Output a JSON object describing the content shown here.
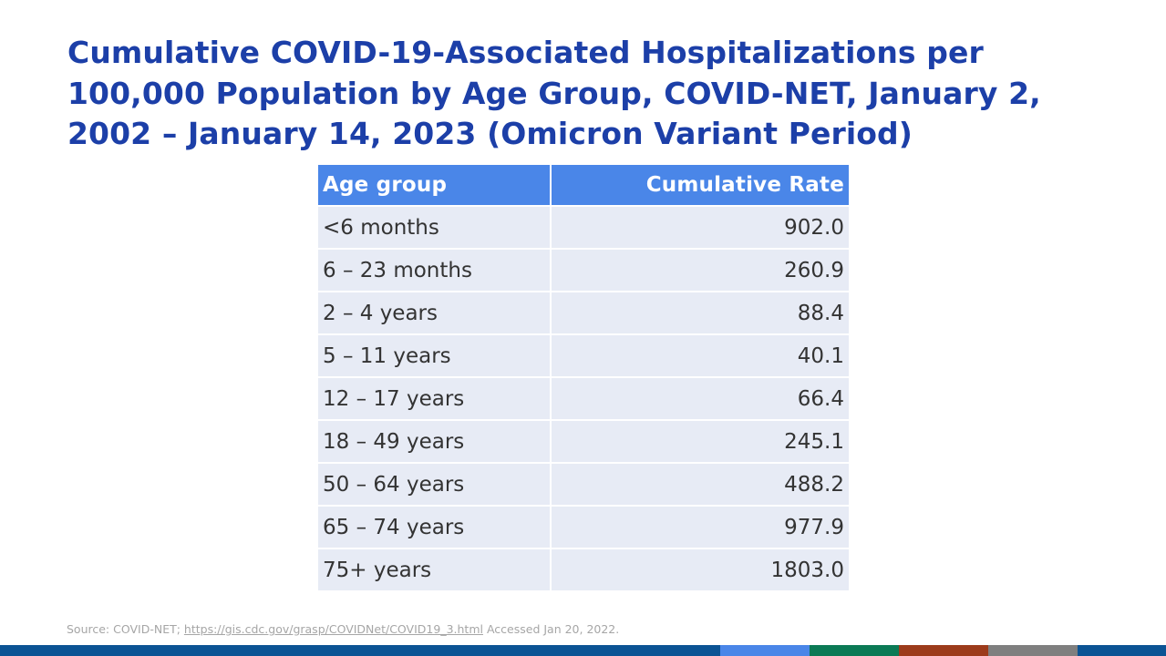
{
  "title": "Cumulative COVID-19-Associated Hospitalizations per 100,000 Population by Age Group, COVID-NET, January 2, 2002 – January 14, 2023 (Omicron Variant Period)",
  "table": {
    "headers": [
      "Age group",
      "Cumulative Rate"
    ],
    "rows": [
      [
        "<6 months",
        "902.0"
      ],
      [
        "6 – 23 months",
        "260.9"
      ],
      [
        "2 – 4 years",
        "88.4"
      ],
      [
        "5 – 11 years",
        "40.1"
      ],
      [
        "12 – 17 years",
        "66.4"
      ],
      [
        "18 – 49 years",
        "245.1"
      ],
      [
        "50 – 64 years",
        "488.2"
      ],
      [
        "65 – 74 years",
        "977.9"
      ],
      [
        "75+ years",
        "1803.0"
      ]
    ]
  },
  "source": {
    "prefix": "Source: COVID-NET; ",
    "link_text": "https://gis.cdc.gov/grasp/COVIDNet/COVID19_3.html",
    "suffix": " Accessed Jan 20, 2022."
  },
  "colors": {
    "title": "#1c3fa8",
    "header_bg": "#4a86e8",
    "row_bg": "#e7ebf5",
    "bottom_bar": [
      "#0b5394",
      "#4a86e8",
      "#0b7a55",
      "#9c3b1b",
      "#7f7f7f",
      "#0b5394"
    ]
  }
}
